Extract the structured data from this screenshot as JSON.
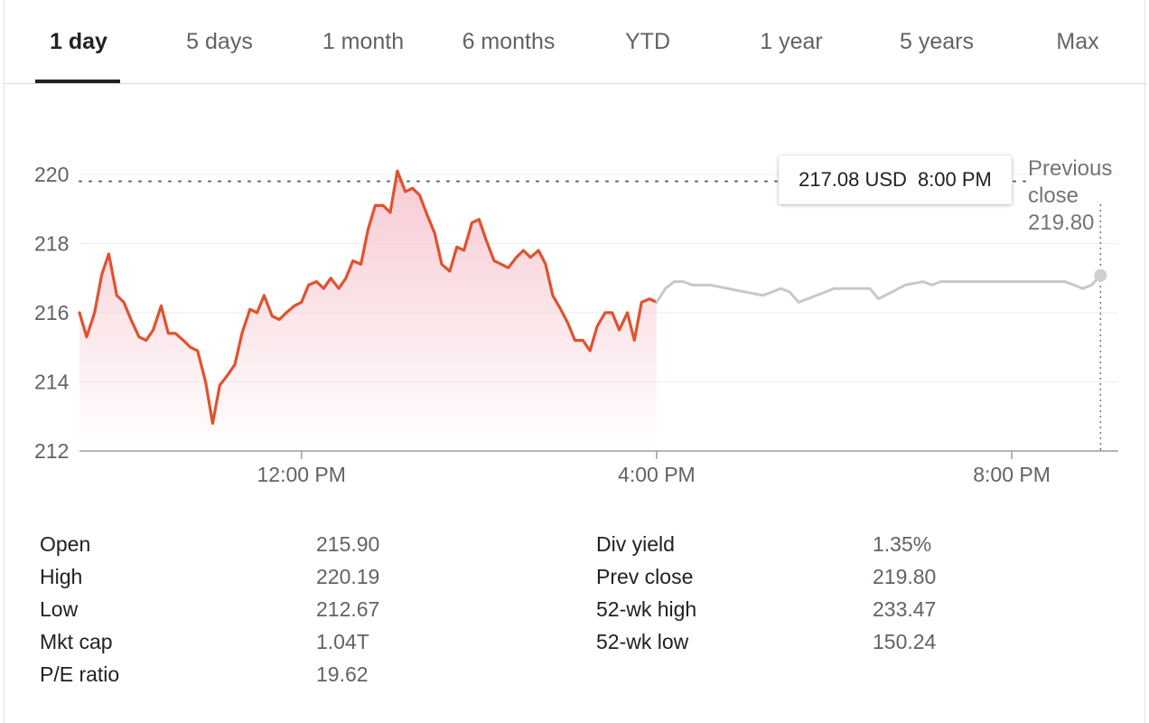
{
  "tabs": [
    {
      "label": "1 day",
      "active": true
    },
    {
      "label": "5 days"
    },
    {
      "label": "1 month"
    },
    {
      "label": "6 months"
    },
    {
      "label": "YTD"
    },
    {
      "label": "1 year"
    },
    {
      "label": "5 years"
    },
    {
      "label": "Max"
    }
  ],
  "tooltip": {
    "price": "217.08 USD",
    "time": "8:00 PM"
  },
  "previous_close": {
    "label_line1": "Previous",
    "label_line2": "close",
    "value": "219.80"
  },
  "colors": {
    "down": "#e0522e",
    "down_fill": "#f5b8c4",
    "after_hours": "#c8c8c8",
    "axis": "#9e9e9e",
    "grid": "#eeeeee"
  },
  "chart_data": {
    "type": "line",
    "y_ticks": [
      "220",
      "218",
      "216",
      "214",
      "212"
    ],
    "x_ticks": [
      "12:00 PM",
      "4:00 PM",
      "8:00 PM"
    ],
    "ylim": [
      212,
      220
    ],
    "xlim_hours": [
      9.5,
      21.2
    ],
    "reference_line": 219.8,
    "grid": true,
    "series": [
      {
        "segment": "regular-session",
        "hours": [
          9.5,
          9.58,
          9.67,
          9.75,
          9.83,
          9.92,
          10.0,
          10.08,
          10.17,
          10.25,
          10.33,
          10.42,
          10.5,
          10.58,
          10.67,
          10.75,
          10.83,
          10.92,
          11.0,
          11.08,
          11.17,
          11.25,
          11.33,
          11.42,
          11.5,
          11.58,
          11.67,
          11.75,
          11.83,
          11.92,
          12.0,
          12.08,
          12.17,
          12.25,
          12.33,
          12.42,
          12.5,
          12.58,
          12.67,
          12.75,
          12.83,
          12.92,
          13.0,
          13.08,
          13.17,
          13.25,
          13.33,
          13.42,
          13.5,
          13.58,
          13.67,
          13.75,
          13.83,
          13.92,
          14.0,
          14.08,
          14.17,
          14.25,
          14.33,
          14.42,
          14.5,
          14.58,
          14.67,
          14.75,
          14.83,
          14.92,
          15.0,
          15.08,
          15.17,
          15.25,
          15.33,
          15.42,
          15.5,
          15.58,
          15.67,
          15.75,
          15.83,
          15.92,
          16.0
        ],
        "values": [
          216.0,
          215.3,
          216.0,
          217.1,
          217.7,
          216.5,
          216.3,
          215.8,
          215.3,
          215.2,
          215.5,
          216.2,
          215.4,
          215.4,
          215.2,
          215.0,
          214.9,
          214.0,
          212.8,
          213.9,
          214.2,
          214.5,
          215.4,
          216.1,
          216.0,
          216.5,
          215.9,
          215.8,
          216.0,
          216.2,
          216.3,
          216.8,
          216.9,
          216.7,
          217.0,
          216.7,
          217.0,
          217.5,
          217.4,
          218.4,
          219.1,
          219.1,
          218.9,
          220.1,
          219.5,
          219.6,
          219.4,
          218.8,
          218.3,
          217.4,
          217.2,
          217.9,
          217.8,
          218.6,
          218.7,
          218.1,
          217.5,
          217.4,
          217.3,
          217.6,
          217.8,
          217.6,
          217.8,
          217.4,
          216.5,
          216.1,
          215.7,
          215.2,
          215.2,
          214.9,
          215.6,
          216.0,
          216.0,
          215.5,
          216.0,
          215.2,
          216.3,
          216.4,
          216.3
        ]
      },
      {
        "segment": "after-hours",
        "hours": [
          16.0,
          16.1,
          16.2,
          16.3,
          16.4,
          16.5,
          16.6,
          16.8,
          17.0,
          17.2,
          17.4,
          17.5,
          17.6,
          17.8,
          17.9,
          18.0,
          18.2,
          18.4,
          18.5,
          18.8,
          19.0,
          19.1,
          19.2,
          19.3,
          19.4,
          19.5,
          19.6,
          19.7,
          19.8,
          19.9,
          20.0,
          20.2,
          20.4,
          20.6,
          20.8,
          20.9,
          21.0
        ],
        "values": [
          216.3,
          216.7,
          216.9,
          216.9,
          216.8,
          216.8,
          216.8,
          216.7,
          216.6,
          216.5,
          216.7,
          216.6,
          216.3,
          216.5,
          216.6,
          216.7,
          216.7,
          216.7,
          216.4,
          216.8,
          216.9,
          216.8,
          216.9,
          216.9,
          216.9,
          216.9,
          216.9,
          216.9,
          216.9,
          216.9,
          216.9,
          216.9,
          216.9,
          216.9,
          216.7,
          216.8,
          217.08
        ]
      }
    ]
  },
  "stats_left": [
    {
      "label": "Open",
      "value": "215.90"
    },
    {
      "label": "High",
      "value": "220.19"
    },
    {
      "label": "Low",
      "value": "212.67"
    },
    {
      "label": "Mkt cap",
      "value": "1.04T"
    },
    {
      "label": "P/E ratio",
      "value": "19.62"
    }
  ],
  "stats_right": [
    {
      "label": "Div yield",
      "value": "1.35%"
    },
    {
      "label": "Prev close",
      "value": "219.80"
    },
    {
      "label": "52-wk high",
      "value": "233.47"
    },
    {
      "label": "52-wk low",
      "value": "150.24"
    }
  ]
}
